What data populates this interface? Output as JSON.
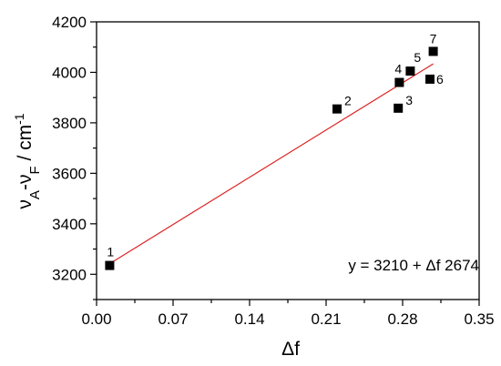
{
  "chart_data": {
    "type": "scatter",
    "xlabel": "Δf",
    "ylabel_parts": [
      "ν",
      "A",
      "-ν",
      "F",
      " / cm",
      "-1"
    ],
    "xlim": [
      0,
      0.35
    ],
    "ylim": [
      3100,
      4200
    ],
    "x_ticks": [
      0.0,
      0.07,
      0.14,
      0.21,
      0.28,
      0.35
    ],
    "x_tick_labels": [
      "0.00",
      "0.07",
      "0.14",
      "0.21",
      "0.28",
      "0.35"
    ],
    "y_ticks": [
      3200,
      3400,
      3600,
      3800,
      4000,
      4200
    ],
    "y_tick_labels": [
      "3200",
      "3400",
      "3600",
      "3800",
      "4000",
      "4200"
    ],
    "grid": false,
    "points": [
      {
        "label": "1",
        "x": 0.012,
        "y": 3235
      },
      {
        "label": "2",
        "x": 0.22,
        "y": 3855
      },
      {
        "label": "3",
        "x": 0.276,
        "y": 3858
      },
      {
        "label": "4",
        "x": 0.277,
        "y": 3960
      },
      {
        "label": "5",
        "x": 0.287,
        "y": 4005
      },
      {
        "label": "6",
        "x": 0.305,
        "y": 3973
      },
      {
        "label": "7",
        "x": 0.308,
        "y": 4083
      }
    ],
    "fit": {
      "x_range": [
        0.012,
        0.308
      ],
      "intercept": 3210,
      "slope": 2674,
      "color": "#dd2222",
      "equation_text": "y = 3210 + Δf 2674"
    },
    "marker_color": "#000000"
  }
}
